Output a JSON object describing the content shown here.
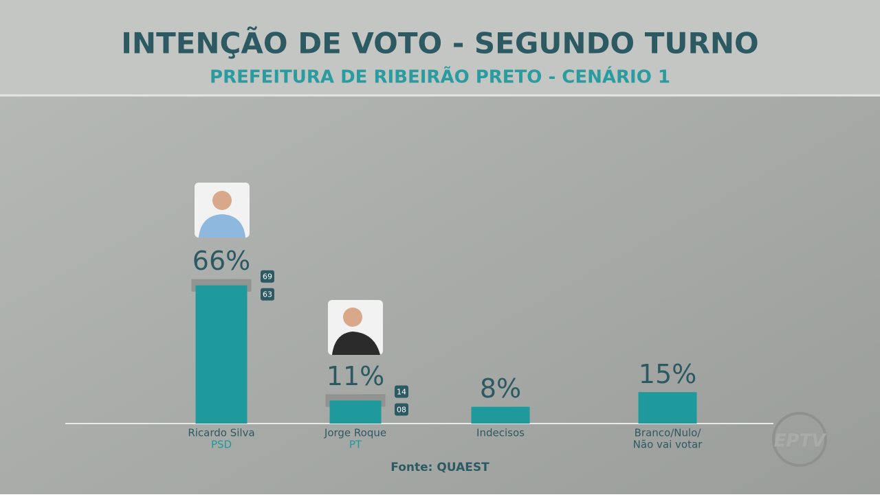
{
  "title": "INTENÇÃO DE VOTO  - SEGUNDO TURNO",
  "subtitle": "PREFEITURA DE RIBEIRÃO PRETO - CENÁRIO 1",
  "chart_data": {
    "type": "bar",
    "categories": [
      "Ricardo Silva",
      "Jorge Roque",
      "Indecisos",
      "Branco/Nulo/"
    ],
    "subcategories": [
      "PSD",
      "PT",
      null,
      "Não vai votar"
    ],
    "values": [
      66,
      11,
      8,
      15
    ],
    "value_labels": [
      "66%",
      "11%",
      "8%",
      "15%"
    ],
    "upper": [
      69,
      14,
      null,
      null
    ],
    "upper_labels": [
      "69",
      "14",
      null,
      null
    ],
    "lower": [
      63,
      8,
      null,
      null
    ],
    "lower_labels": [
      "63",
      "08",
      null,
      null
    ],
    "color": "#1f9a9c"
  },
  "source": "Fonte: QUAEST",
  "logo": "EPTV"
}
